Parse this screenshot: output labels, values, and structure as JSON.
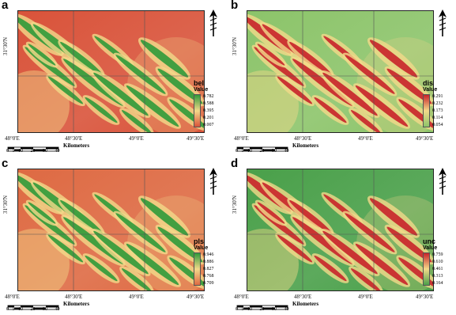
{
  "panels": [
    {
      "letter": "a",
      "code": "bel",
      "legend_title": "Value",
      "legend_values": [
        "0.782",
        "0.588",
        "0.395",
        "0.201",
        "0.007"
      ],
      "lat_label": "31°30'N",
      "lon_labels": [
        "48°0'E",
        "48°30'E",
        "49°0'E",
        "49°30'E"
      ],
      "scale_labels": [
        "0",
        "5",
        "10",
        "20",
        "30",
        "40"
      ],
      "scale_units": "Kilometers",
      "colors": {
        "base": "#d9533a",
        "high": "#2f9a3a",
        "mid": "#f3d98a"
      },
      "pattern": "bands-green"
    },
    {
      "letter": "b",
      "code": "dis",
      "legend_title": "Value",
      "legend_values": [
        "0.291",
        "0.232",
        "0.173",
        "0.114",
        "0.054"
      ],
      "lat_label": "31°30'N",
      "lon_labels": [
        "48°0'E",
        "48°30'E",
        "49°0'E",
        "49°30'E"
      ],
      "scale_labels": [
        "0",
        "5",
        "10",
        "20",
        "30",
        "40"
      ],
      "scale_units": "Kilometers",
      "colors": {
        "base": "#8cc46a",
        "high": "#c8232a",
        "mid": "#f3d98a"
      },
      "pattern": "bands-red"
    },
    {
      "letter": "c",
      "code": "pls",
      "legend_title": "Value",
      "legend_values": [
        "0.946",
        "0.886",
        "0.827",
        "0.768",
        "0.709"
      ],
      "lat_label": "31°30'N",
      "lon_labels": [
        "48°0'E",
        "48°30'E",
        "49°0'E",
        "49°30'E"
      ],
      "scale_labels": [
        "0",
        "5",
        "10",
        "20",
        "30",
        "40"
      ],
      "scale_units": "Kilometers",
      "colors": {
        "base": "#de6a43",
        "high": "#2f9a3a",
        "mid": "#f3d98a"
      },
      "pattern": "bands-green"
    },
    {
      "letter": "d",
      "code": "unc",
      "legend_title": "Value",
      "legend_values": [
        "0.759",
        "0.610",
        "0.461",
        "0.313",
        "0.164"
      ],
      "lat_label": "31°30'N",
      "lon_labels": [
        "48°0'E",
        "48°30'E",
        "49°0'E",
        "49°30'E"
      ],
      "scale_labels": [
        "0",
        "5",
        "10",
        "20",
        "30",
        "40"
      ],
      "scale_units": "Kilometers",
      "colors": {
        "base": "#4aa04a",
        "high": "#c8232a",
        "mid": "#f3d98a"
      },
      "pattern": "bands-red"
    }
  ]
}
